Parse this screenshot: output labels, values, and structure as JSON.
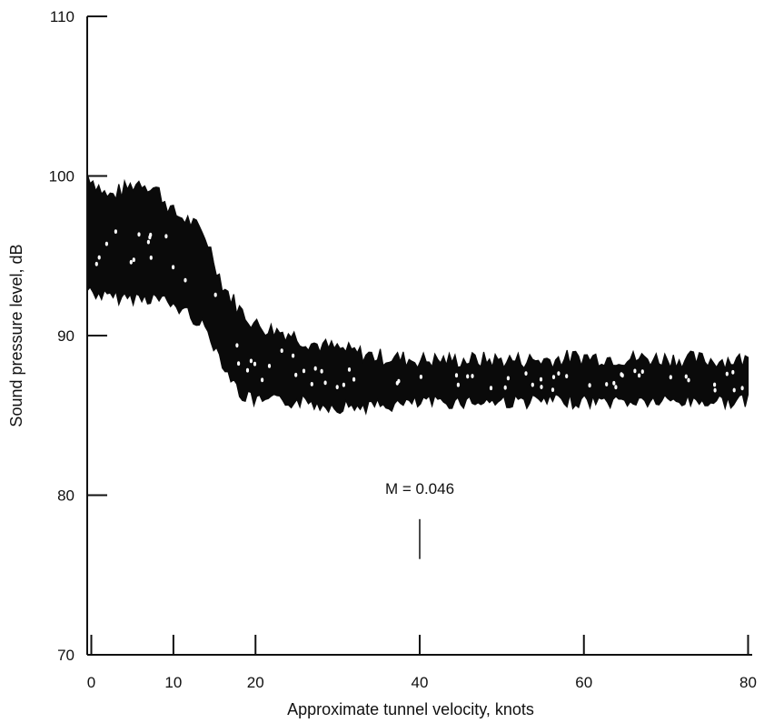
{
  "chart_data": {
    "type": "area",
    "title": "",
    "xlabel": "Approximate tunnel velocity, knots",
    "ylabel": "Sound pressure level, dB",
    "xlim": [
      -0.5,
      80.5
    ],
    "ylim": [
      70,
      110
    ],
    "x_ticks": [
      {
        "value": 0,
        "label": "0"
      },
      {
        "value": 10,
        "label": "10"
      },
      {
        "value": 20,
        "label": "20"
      },
      {
        "value": 40,
        "label": "40"
      },
      {
        "value": 60,
        "label": "60"
      },
      {
        "value": 80,
        "label": "80"
      }
    ],
    "y_ticks": [
      {
        "value": 70,
        "label": "70"
      },
      {
        "value": 80,
        "label": "80"
      },
      {
        "value": 90,
        "label": "90"
      },
      {
        "value": 100,
        "label": "100"
      },
      {
        "value": 110,
        "label": "110"
      }
    ],
    "grid": false,
    "series": [
      {
        "x": [
          -0.5,
          2,
          4,
          6,
          8,
          10,
          12,
          14,
          16,
          18,
          20,
          22,
          24,
          26,
          28,
          30,
          35,
          40,
          45,
          50,
          55,
          60,
          65,
          70,
          75,
          80
        ],
        "upper": [
          100,
          98.5,
          99,
          99.5,
          99,
          97.5,
          97,
          96,
          93,
          91.5,
          90.5,
          90.2,
          90,
          89.5,
          89.2,
          89,
          88.5,
          88.3,
          88.3,
          88.3,
          88.3,
          88.5,
          88.4,
          88.4,
          88.3,
          88.3
        ],
        "lower": [
          93,
          92.5,
          92.5,
          92.5,
          92.5,
          92,
          91.5,
          90.5,
          88.5,
          86.5,
          86,
          86,
          86,
          86,
          85.8,
          85.7,
          85.7,
          85.9,
          86,
          86,
          86,
          86,
          86,
          86,
          86,
          86
        ]
      }
    ],
    "annotations": [
      {
        "text": "M = 0.046",
        "x": 40,
        "line_y": [
          76,
          78.5
        ]
      }
    ]
  }
}
